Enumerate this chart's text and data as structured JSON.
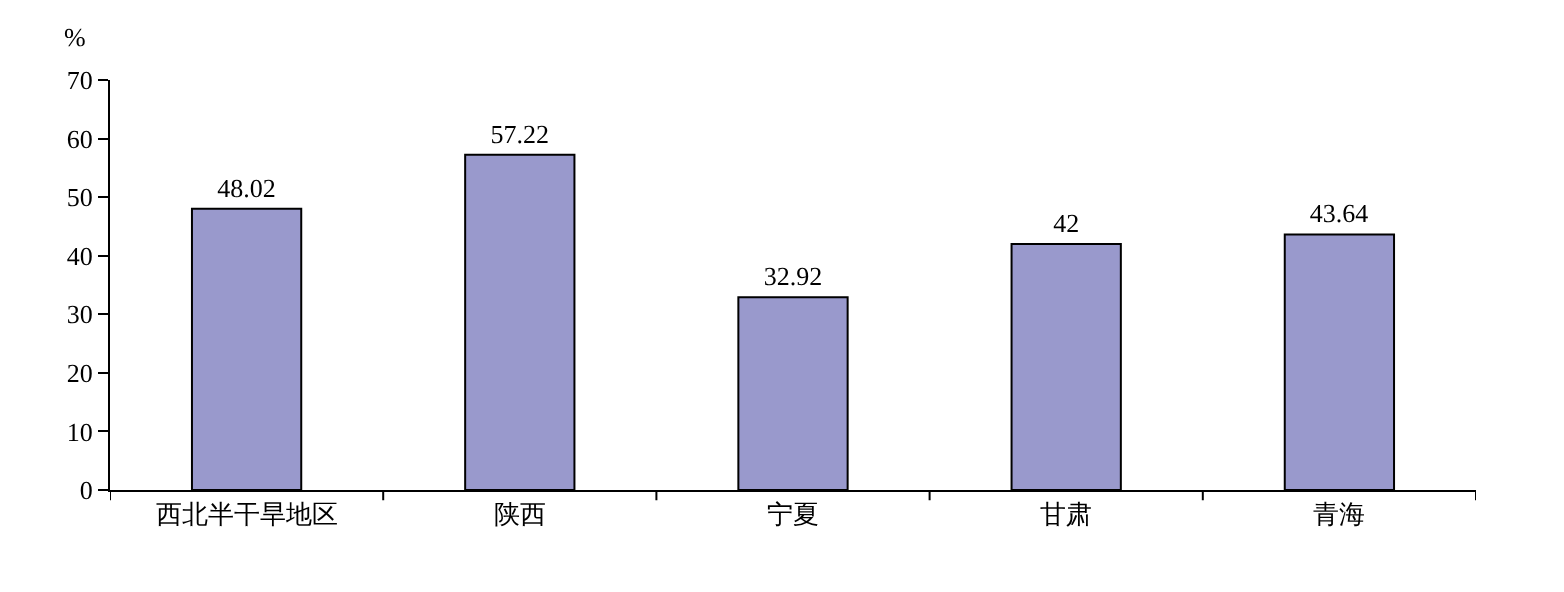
{
  "chart_data": {
    "type": "bar",
    "ylabel": "%",
    "categories": [
      "西北半干旱地区",
      "陕西",
      "宁夏",
      "甘肃",
      "青海"
    ],
    "values": [
      48.02,
      57.22,
      32.92,
      42,
      43.64
    ],
    "color": "#9999cc",
    "ylim": [
      0,
      70
    ],
    "yticks": [
      0,
      10,
      20,
      30,
      40,
      50,
      60,
      70
    ],
    "data_labels": true,
    "grid": false,
    "legend": false
  }
}
